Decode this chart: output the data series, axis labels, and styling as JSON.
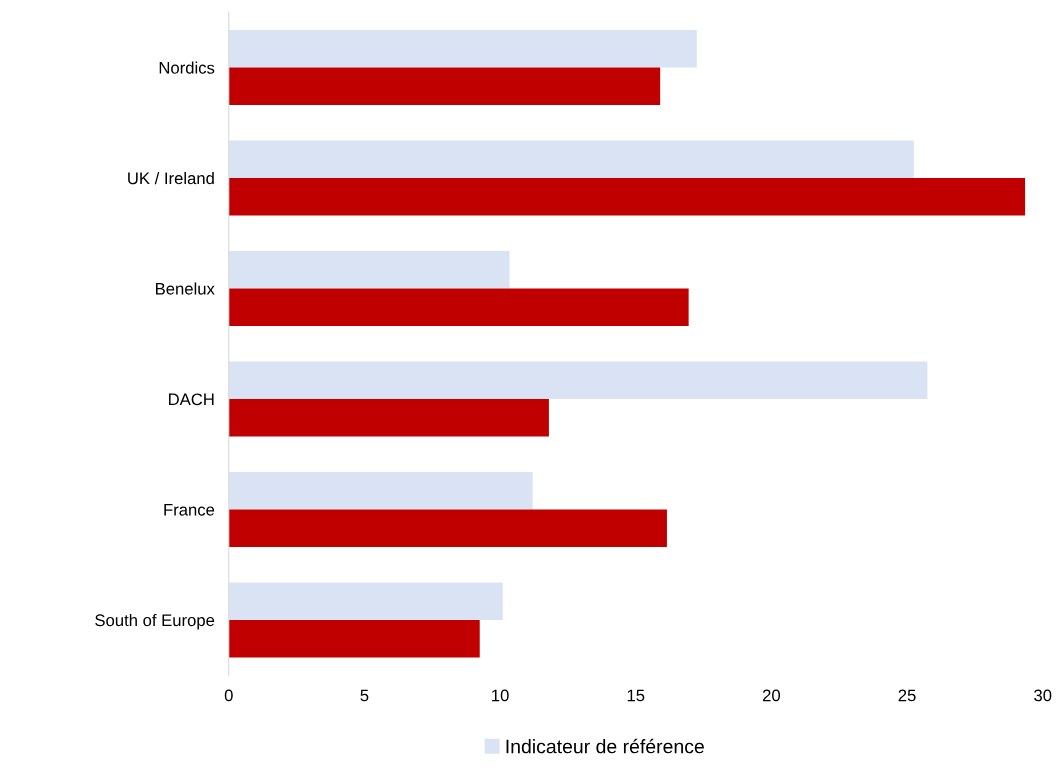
{
  "chart_data": {
    "type": "bar",
    "orientation": "horizontal",
    "categories": [
      "Nordics",
      "UK / Ireland",
      "Benelux",
      "DACH",
      "France",
      "South of Europe"
    ],
    "series": [
      {
        "name": "Indicateur de référence",
        "color": "#dae3f3",
        "values": [
          17.25,
          25.25,
          10.35,
          25.75,
          11.2,
          10.1
        ]
      },
      {
        "color": "#c00000",
        "values": [
          15.9,
          29.35,
          16.95,
          11.8,
          16.15,
          9.25
        ]
      }
    ],
    "xlim": [
      0,
      30
    ],
    "xticks": [
      0,
      5,
      10,
      15,
      20,
      25,
      30
    ],
    "grid": false,
    "legend": "bottom"
  }
}
